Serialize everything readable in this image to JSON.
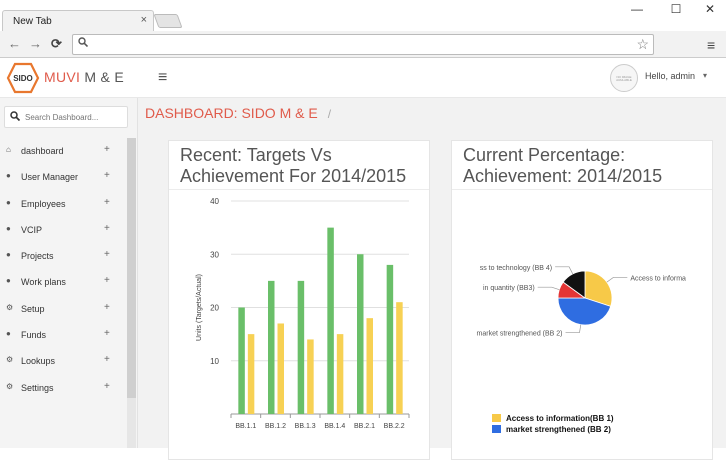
{
  "browser": {
    "tab_title": "New Tab",
    "tab_close": "×",
    "window_buttons": [
      "—",
      "☐",
      "✕"
    ],
    "nav_icons": [
      "←",
      "→",
      "⟳"
    ],
    "address_icon": "search-icon",
    "bookmark_icon": "☆",
    "menu_icon": "≡"
  },
  "header": {
    "logo_badge": "SIDO",
    "logo_text": "MUVI",
    "logo_suffix": "M & E",
    "menu_icon": "≡",
    "avatar_text": "NO IMAGE AVAILABLE",
    "greeting": "Hello, admin",
    "caret": "▾"
  },
  "sidebar": {
    "search_placeholder": "Search Dashboard...",
    "items": [
      {
        "icon": "home-icon",
        "glyph": "⌂",
        "label": "dashboard",
        "expand": "+"
      },
      {
        "icon": "user-icon",
        "glyph": "●",
        "label": "User Manager",
        "expand": "+"
      },
      {
        "icon": "users-icon",
        "glyph": "●",
        "label": "Employees",
        "expand": "+"
      },
      {
        "icon": "users-icon",
        "glyph": "●",
        "label": "VCIP",
        "expand": "+"
      },
      {
        "icon": "users-icon",
        "glyph": "●",
        "label": "Projects",
        "expand": "+"
      },
      {
        "icon": "users-icon",
        "glyph": "●",
        "label": "Work plans",
        "expand": "+"
      },
      {
        "icon": "gear-icon",
        "glyph": "⚙",
        "label": "Setup",
        "expand": "+"
      },
      {
        "icon": "users-icon",
        "glyph": "●",
        "label": "Funds",
        "expand": "+"
      },
      {
        "icon": "gear-icon",
        "glyph": "⚙",
        "label": "Lookups",
        "expand": "+"
      },
      {
        "icon": "gear-icon",
        "glyph": "⚙",
        "label": "Settings",
        "expand": "+"
      }
    ]
  },
  "main": {
    "breadcrumb": "DASHBOARD: SIDO M & E",
    "breadcrumb_sep": "/",
    "left_panel_title": "Recent: Targets Vs Achievement For 2014/2015",
    "right_panel_title": "Current Percentage: Achievement: 2014/2015"
  },
  "chart_data": [
    {
      "type": "bar",
      "ylabel": "Units (Targets/Actual)",
      "ylim": [
        0,
        40
      ],
      "yticks": [
        10,
        20,
        30,
        40
      ],
      "categories": [
        "BB.1.1",
        "BB.1.2",
        "BB.1.3",
        "BB.1.4",
        "BB.2.1",
        "BB.2.2"
      ],
      "series": [
        {
          "color": "#6abf69",
          "values": [
            20,
            25,
            25,
            35,
            30,
            28
          ]
        },
        {
          "color": "#f7d154",
          "values": [
            15,
            17,
            14,
            15,
            18,
            21
          ]
        }
      ]
    },
    {
      "type": "pie",
      "slices": [
        {
          "label": "Access to informa",
          "legend": "Access to information(BB 1)",
          "value": 30,
          "color": "#f7c948"
        },
        {
          "label": "market strengthened (BB 2)",
          "legend": "market strengthened (BB 2)",
          "value": 45,
          "color": "#2f6de1"
        },
        {
          "label": "in quantity (BB3)",
          "value": 10,
          "color": "#e43535"
        },
        {
          "label": "ss to technology (BB 4)",
          "value": 15,
          "color": "#111111"
        }
      ]
    }
  ]
}
